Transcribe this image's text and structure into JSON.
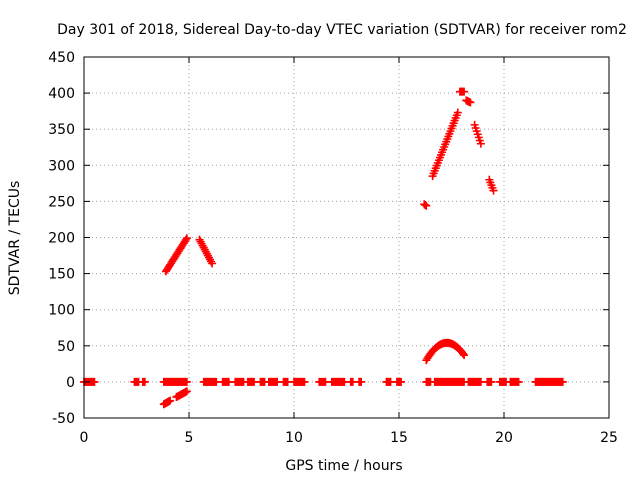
{
  "chart_data": {
    "type": "scatter",
    "title": "Day 301 of 2018, Sidereal Day-to-day VTEC variation (SDTVAR) for receiver rom2",
    "xlabel": "GPS time / hours",
    "ylabel": "SDTVAR / TECUs",
    "xlim": [
      0,
      25
    ],
    "ylim": [
      -50,
      450
    ],
    "xticks": [
      0,
      5,
      10,
      15,
      20,
      25
    ],
    "yticks": [
      -50,
      0,
      50,
      100,
      150,
      200,
      250,
      300,
      350,
      400,
      450
    ],
    "grid": true,
    "grid_style": "dotted",
    "marker": "plus",
    "marker_color": "#ff0000",
    "series": [
      {
        "name": "SDTVAR",
        "segments": [
          {
            "x0": 0.0,
            "x1": 0.5,
            "y0": 0,
            "y1": 0,
            "peak": 0
          },
          {
            "x0": 2.4,
            "x1": 2.6,
            "y0": 0,
            "y1": 0,
            "peak": 0
          },
          {
            "x0": 2.8,
            "x1": 2.9,
            "y0": 0,
            "y1": 0,
            "peak": 0
          },
          {
            "x0": 3.8,
            "x1": 4.9,
            "y0": 0,
            "y1": 0,
            "peak": 0
          },
          {
            "x0": 5.7,
            "x1": 6.3,
            "y0": 0,
            "y1": 0,
            "peak": 0
          },
          {
            "x0": 6.6,
            "x1": 6.9,
            "y0": 0,
            "y1": 0,
            "peak": 0
          },
          {
            "x0": 7.2,
            "x1": 7.6,
            "y0": 0,
            "y1": 0,
            "peak": 0
          },
          {
            "x0": 7.8,
            "x1": 8.1,
            "y0": 0,
            "y1": 0,
            "peak": 0
          },
          {
            "x0": 8.4,
            "x1": 8.6,
            "y0": 0,
            "y1": 0,
            "peak": 0
          },
          {
            "x0": 8.8,
            "x1": 9.2,
            "y0": 0,
            "y1": 0,
            "peak": 0
          },
          {
            "x0": 9.5,
            "x1": 9.7,
            "y0": 0,
            "y1": 0,
            "peak": 0
          },
          {
            "x0": 10.0,
            "x1": 10.5,
            "y0": 0,
            "y1": 0,
            "peak": 0
          },
          {
            "x0": 11.2,
            "x1": 11.5,
            "y0": 0,
            "y1": 0,
            "peak": 0
          },
          {
            "x0": 11.8,
            "x1": 12.4,
            "y0": 0,
            "y1": 0,
            "peak": 0
          },
          {
            "x0": 12.7,
            "x1": 12.8,
            "y0": 0,
            "y1": 0,
            "peak": 0
          },
          {
            "x0": 13.1,
            "x1": 13.2,
            "y0": 0,
            "y1": 0,
            "peak": 0
          },
          {
            "x0": 14.4,
            "x1": 14.6,
            "y0": 0,
            "y1": 0,
            "peak": 0
          },
          {
            "x0": 14.9,
            "x1": 15.1,
            "y0": 0,
            "y1": 0,
            "peak": 0
          },
          {
            "x0": 16.3,
            "x1": 16.5,
            "y0": 0,
            "y1": 0,
            "peak": 0
          },
          {
            "x0": 16.7,
            "x1": 18.1,
            "y0": 0,
            "y1": 0,
            "peak": 0
          },
          {
            "x0": 18.3,
            "x1": 18.9,
            "y0": 0,
            "y1": 0,
            "peak": 0
          },
          {
            "x0": 19.2,
            "x1": 19.4,
            "y0": 0,
            "y1": 0,
            "peak": 0
          },
          {
            "x0": 19.8,
            "x1": 20.1,
            "y0": 0,
            "y1": 0,
            "peak": 0
          },
          {
            "x0": 20.3,
            "x1": 20.7,
            "y0": 0,
            "y1": 0,
            "peak": 0
          },
          {
            "x0": 21.5,
            "x1": 22.8,
            "y0": 0,
            "y1": 0,
            "peak": 0
          },
          {
            "x0": 3.8,
            "x1": 4.1,
            "y0": -31,
            "y1": -26,
            "peak": 0
          },
          {
            "x0": 4.4,
            "x1": 4.9,
            "y0": -21,
            "y1": -13,
            "peak": 0
          },
          {
            "x0": 3.9,
            "x1": 4.9,
            "y0": 153,
            "y1": 199,
            "peak": 0
          },
          {
            "x0": 5.5,
            "x1": 6.1,
            "y0": 197,
            "y1": 164,
            "peak": 0
          },
          {
            "x0": 16.2,
            "x1": 16.3,
            "y0": 246,
            "y1": 244,
            "peak": 0
          },
          {
            "x0": 16.6,
            "x1": 17.8,
            "y0": 285,
            "y1": 373,
            "peak": 0
          },
          {
            "x0": 17.9,
            "x1": 18.1,
            "y0": 402,
            "y1": 402,
            "peak": 0
          },
          {
            "x0": 18.2,
            "x1": 18.4,
            "y0": 390,
            "y1": 387,
            "peak": 0
          },
          {
            "x0": 18.6,
            "x1": 18.9,
            "y0": 356,
            "y1": 330,
            "peak": 0
          },
          {
            "x0": 19.3,
            "x1": 19.5,
            "y0": 280,
            "y1": 265,
            "peak": 0
          },
          {
            "x0": 16.3,
            "x1": 18.1,
            "y0": 30,
            "y1": 37,
            "peak": 54
          }
        ]
      }
    ]
  }
}
